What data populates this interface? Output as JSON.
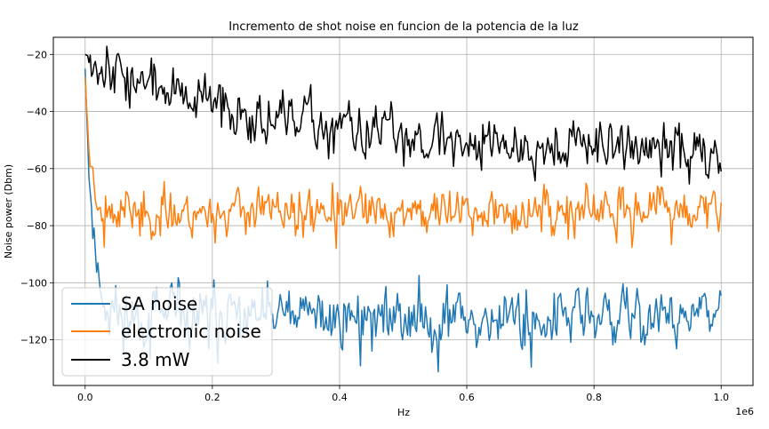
{
  "chart_data": {
    "type": "line",
    "title": "Incremento de shot noise en funcion de la potencia de la luz",
    "xlabel": "Hz",
    "ylabel": "Noise power (Dbm)",
    "x_offset_text": "1e6",
    "xlim": [
      -50000,
      1050000
    ],
    "ylim": [
      -136,
      -14
    ],
    "x_ticks": [
      0,
      200000,
      400000,
      600000,
      800000,
      1000000
    ],
    "x_tick_labels": [
      "0.0",
      "0.2",
      "0.4",
      "0.6",
      "0.8",
      "1.0"
    ],
    "y_ticks": [
      -120,
      -100,
      -80,
      -60,
      -40,
      -20
    ],
    "y_tick_labels": [
      "−120",
      "−100",
      "−80",
      "−60",
      "−40",
      "−20"
    ],
    "grid": true,
    "legend_position": "lower-left",
    "x_range": [
      0,
      1000000
    ],
    "points_per_series": 500,
    "series": [
      {
        "name": "SA noise",
        "color": "#1f77b4",
        "approx_shape": "starts near -25 at x=0, drops steeply to about -95 by x=20000, then noisy around -112 (range about -130 to -98)",
        "decay": {
          "start": -25,
          "level": -112,
          "tau": 12000
        },
        "noise_amplitude": 6,
        "seed": 11
      },
      {
        "name": "electronic noise",
        "color": "#ff7f0e",
        "approx_shape": "starts near -28 at x=0, drops to about -75 by x=20000, then noisy around -74 (range about -87 to -63)",
        "decay": {
          "start": -28,
          "level": -75,
          "tau": 9000
        },
        "noise_amplitude": 4.5,
        "seed": 23
      },
      {
        "name": "3.8 mW",
        "color": "#000000",
        "approx_shape": "starts near -20 at x=0, gradually decreases from about -32 to -54 by x=1e6, noisy (range about -65 to -20)",
        "decay": {
          "start": -20,
          "level": -54,
          "tau": 280000
        },
        "noise_amplitude": 5,
        "seed": 37
      }
    ]
  }
}
